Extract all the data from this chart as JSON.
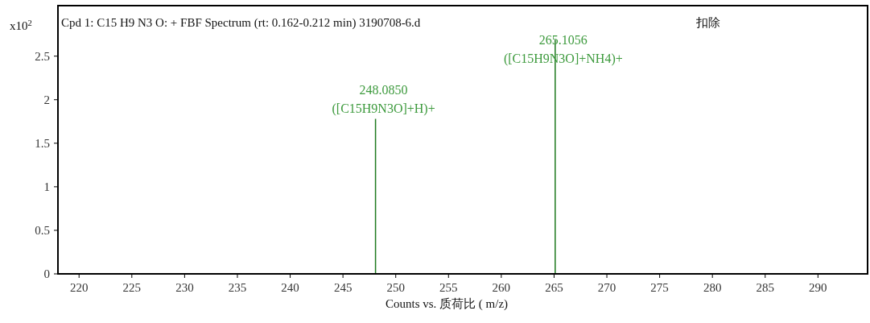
{
  "chart_data": {
    "type": "bar",
    "title": "Cpd 1: C15 H9 N3 O: + FBF Spectrum (rt: 0.162-0.212 min) 3190708-6.d",
    "xlabel": "Counts vs.   质荷比 ( m/z)",
    "ylabel": "x10$^{2}$",
    "x": [
      248.085,
      265.1056
    ],
    "values": [
      1.78,
      2.69
    ],
    "color": "#1f7a1f",
    "xlim": [
      218.0,
      294.7
    ],
    "xticks": [
      220,
      225,
      230,
      235,
      240,
      245,
      250,
      255,
      260,
      265,
      270,
      275,
      280,
      285,
      290
    ],
    "ylim": [
      0,
      3.08
    ],
    "yticks": [
      0,
      0.5,
      1,
      1.5,
      2,
      2.5
    ],
    "annotations": [
      {
        "text": "248.0850\n([C15H9N3O]+H)+",
        "x": 248.085,
        "y": 1.78
      },
      {
        "text": "265.1056\n([C15H9N3O]+NH4)+",
        "x": 265.1056,
        "y": 2.69
      },
      "扣除"
    ]
  }
}
